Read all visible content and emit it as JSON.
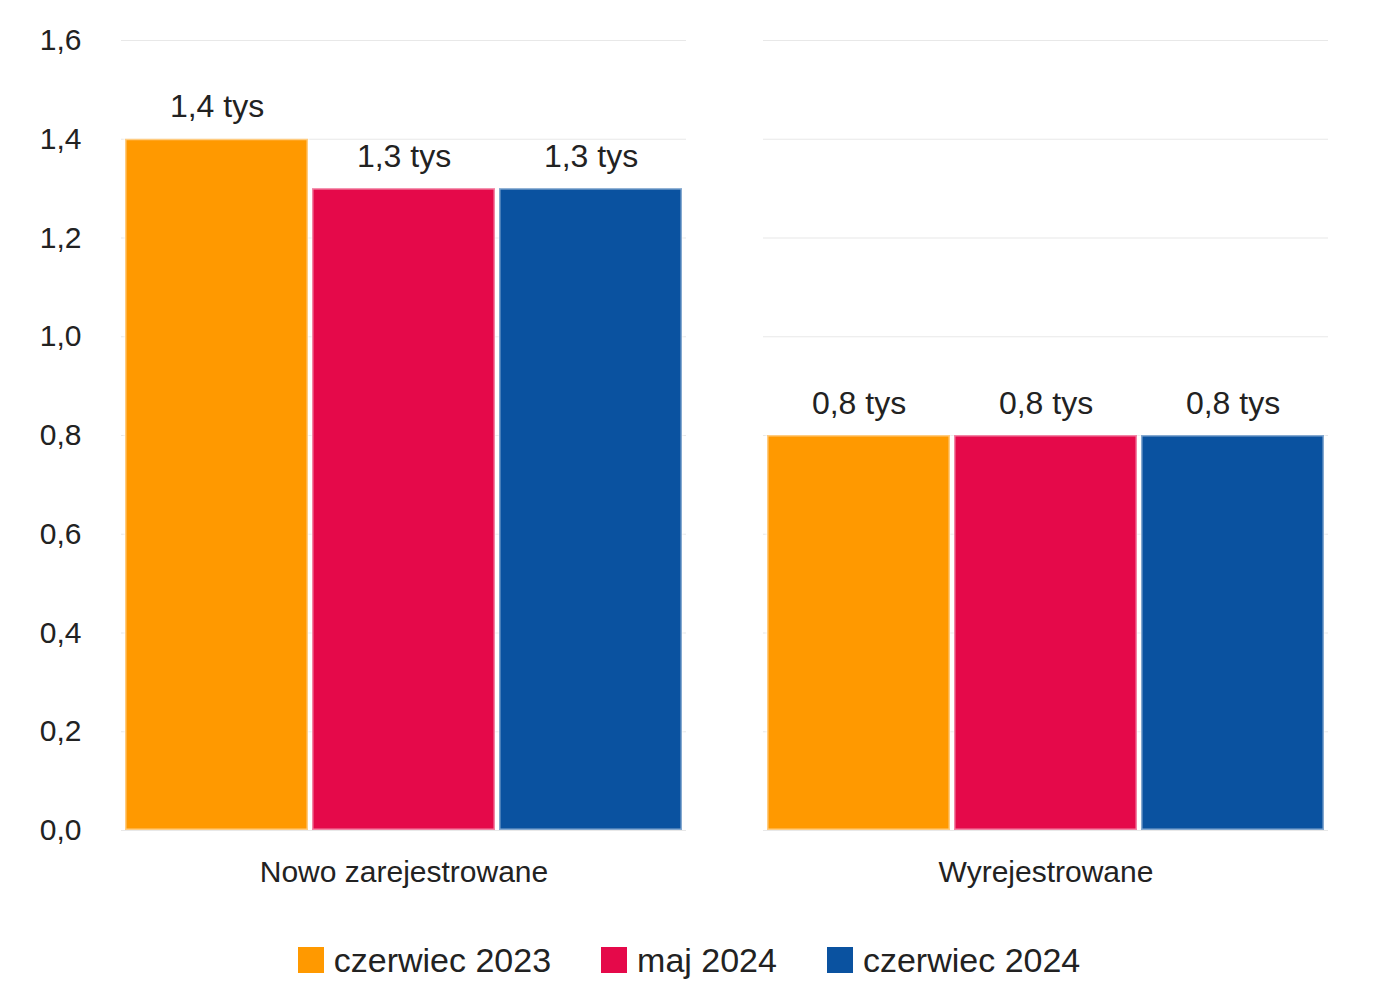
{
  "chart_data": {
    "type": "bar",
    "categories": [
      "Nowo zarejestrowane",
      "Wyrejestrowane"
    ],
    "series": [
      {
        "name": "czerwiec 2023",
        "color": "#ff9900",
        "values": [
          1.4,
          0.8
        ],
        "value_labels": [
          "1,4 tys",
          "0,8 tys"
        ]
      },
      {
        "name": "maj 2024",
        "color": "#e5094a",
        "values": [
          1.3,
          0.8
        ],
        "value_labels": [
          "1,3 tys",
          "0,8 tys"
        ]
      },
      {
        "name": "czerwiec 2024",
        "color": "#0a52a0",
        "values": [
          1.3,
          0.8
        ],
        "value_labels": [
          "1,3 tys",
          "0,8 tys"
        ]
      }
    ],
    "ylim": [
      0,
      1.6
    ],
    "yticks": [
      {
        "value": 0,
        "label": "0,0"
      },
      {
        "value": 0.2,
        "label": "0,2"
      },
      {
        "value": 0.4,
        "label": "0,4"
      },
      {
        "value": 0.6,
        "label": "0,6"
      },
      {
        "value": 0.8,
        "label": "0,8"
      },
      {
        "value": 1,
        "label": "1,0"
      },
      {
        "value": 1.2,
        "label": "1,2"
      },
      {
        "value": 1.4,
        "label": "1,4"
      },
      {
        "value": 1.6,
        "label": "1,6"
      }
    ],
    "grid": true,
    "legend": "bottom",
    "data_labels": true
  }
}
